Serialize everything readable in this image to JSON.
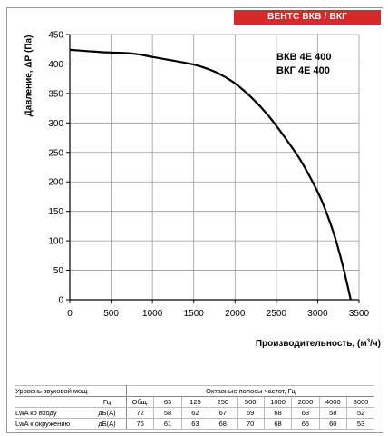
{
  "badge": "ВЕНТС ВКВ / ВКГ",
  "model_lines": [
    "ВКВ 4Е 400",
    "ВКГ 4Е 400"
  ],
  "chart_data": {
    "type": "line",
    "title": "",
    "xlabel": "Производительность, (м³/ч)",
    "xlabel_parts": [
      "Производительность, (м",
      "3",
      "/ч)"
    ],
    "ylabel": "Давление, ΔР (Па)",
    "xlim": [
      0,
      3500
    ],
    "ylim": [
      0,
      450
    ],
    "xticks": [
      0,
      500,
      1000,
      1500,
      2000,
      2500,
      3000,
      3500
    ],
    "yticks": [
      0,
      50,
      100,
      150,
      200,
      250,
      300,
      350,
      400,
      450
    ],
    "grid": true,
    "series": [
      {
        "name": "",
        "color": "#000000",
        "x": [
          0,
          200,
          400,
          600,
          800,
          1000,
          1200,
          1400,
          1500,
          1600,
          1800,
          2000,
          2200,
          2400,
          2600,
          2800,
          3000,
          3100,
          3200,
          3300,
          3400
        ],
        "y": [
          424,
          422,
          420,
          419,
          417,
          412,
          407,
          402,
          399,
          395,
          384,
          367,
          343,
          313,
          276,
          235,
          183,
          150,
          110,
          60,
          0
        ]
      }
    ]
  },
  "sound_table": {
    "row1": {
      "label": "Уровень звуковой мощности",
      "unit": "",
      "total": "Октавные полосы частот, Гц"
    },
    "row2": {
      "label": "",
      "unit": "Гц",
      "total": "Общ.",
      "bands": [
        "63",
        "125",
        "250",
        "500",
        "1000",
        "2000",
        "4000",
        "8000"
      ]
    },
    "row3": {
      "label": "LwA ко входу",
      "unit": "дБ(А)",
      "total": "72",
      "bands": [
        "58",
        "62",
        "67",
        "69",
        "68",
        "63",
        "58",
        "52"
      ]
    },
    "row4": {
      "label": "LwA к окружению",
      "unit": "дБ(А)",
      "total": "76",
      "bands": [
        "61",
        "63",
        "68",
        "70",
        "68",
        "65",
        "60",
        "53"
      ]
    }
  }
}
